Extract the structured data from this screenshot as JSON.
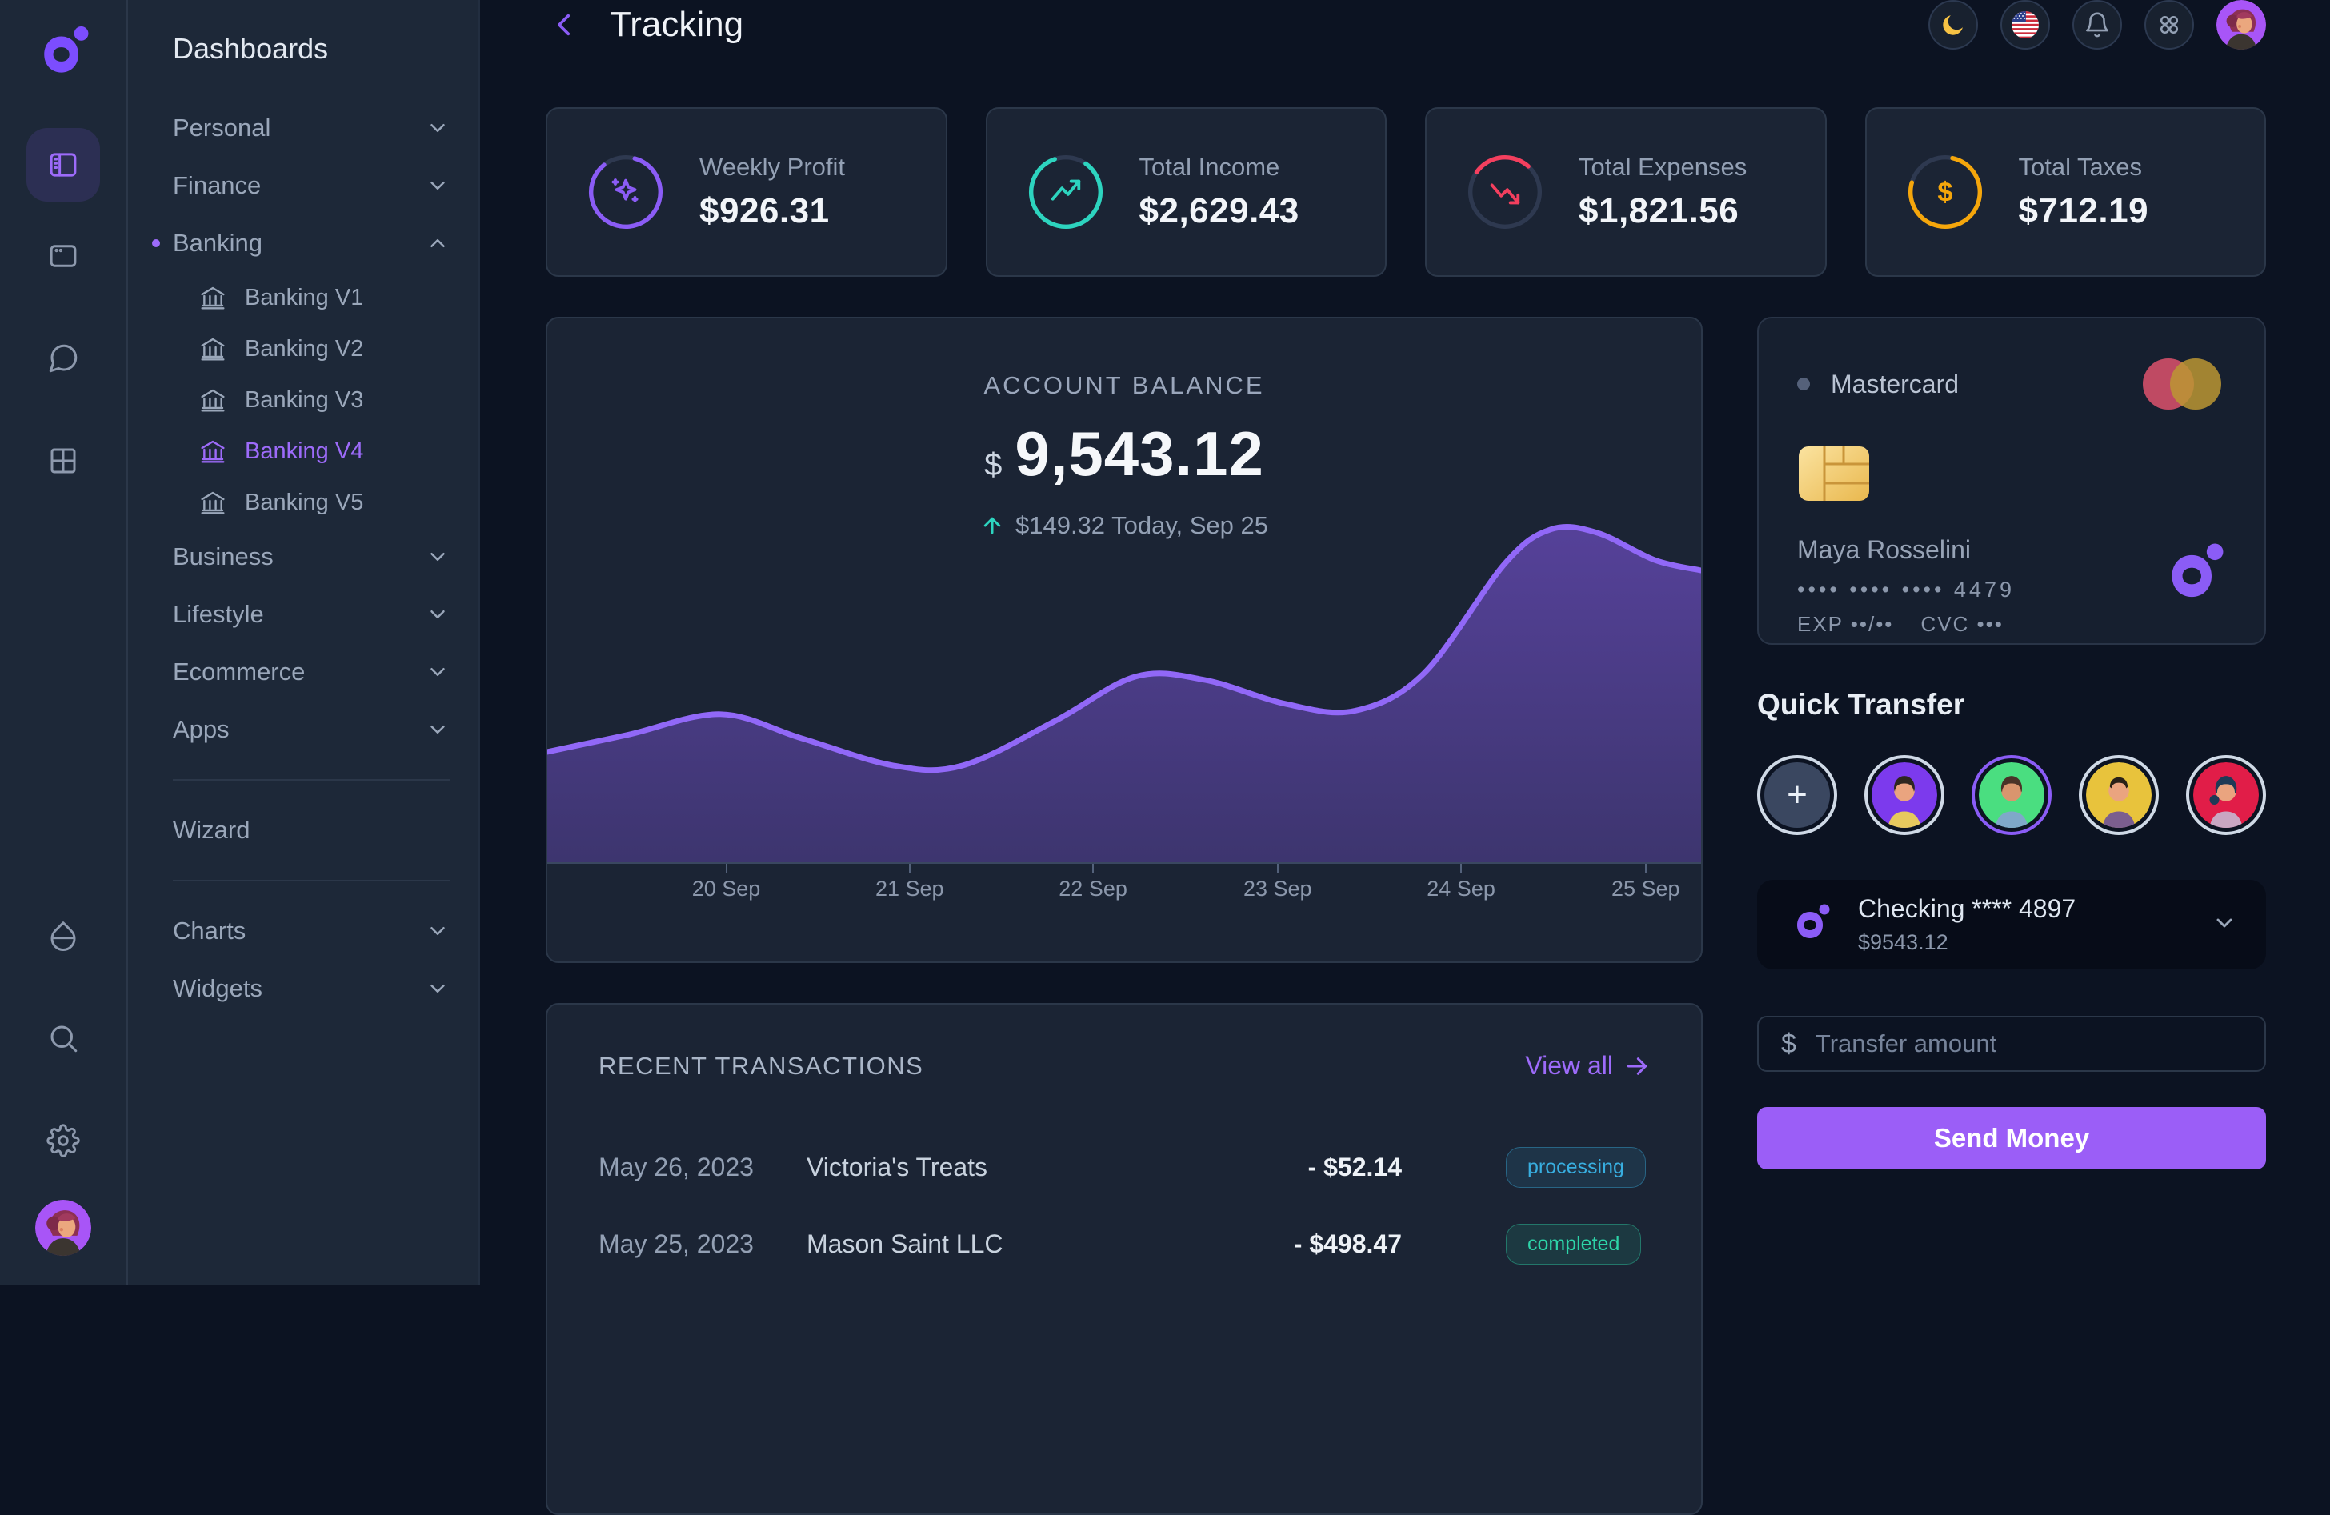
{
  "sidebar": {
    "title": "Dashboards",
    "groups": [
      {
        "label": "Personal",
        "chevron": "down"
      },
      {
        "label": "Finance",
        "chevron": "down"
      },
      {
        "label": "Banking",
        "chevron": "up",
        "active": true
      }
    ],
    "banking_children": [
      {
        "label": "Banking V1"
      },
      {
        "label": "Banking V2"
      },
      {
        "label": "Banking V3"
      },
      {
        "label": "Banking V4",
        "active": true
      },
      {
        "label": "Banking V5"
      }
    ],
    "mid_groups": [
      {
        "label": "Business"
      },
      {
        "label": "Lifestyle"
      },
      {
        "label": "Ecommerce"
      },
      {
        "label": "Apps"
      }
    ],
    "wizard_label": "Wizard",
    "bottom_groups": [
      {
        "label": "Charts"
      },
      {
        "label": "Widgets"
      }
    ]
  },
  "header": {
    "title": "Tracking"
  },
  "stats": [
    {
      "label": "Weekly Profit",
      "value": "$926.31",
      "color": "#8b5cf6",
      "ring_percent": 85,
      "ring_start": -75,
      "icon": "sparkle"
    },
    {
      "label": "Total Income",
      "value": "$2,629.43",
      "color": "#2dd4bf",
      "ring_percent": 85,
      "ring_start": -55,
      "icon": "trending-up"
    },
    {
      "label": "Total Expenses",
      "value": "$1,821.56",
      "color": "#f43f5e",
      "ring_percent": 27,
      "ring_start": -145,
      "icon": "trending-down"
    },
    {
      "label": "Total Taxes",
      "value": "$712.19",
      "color": "#f5a60b",
      "ring_percent": 76,
      "ring_start": -78,
      "icon": "dollar"
    }
  ],
  "balance": {
    "label": "ACCOUNT BALANCE",
    "currency": "$",
    "amount": "9,543.12",
    "delta": "$149.32 Today, Sep 25"
  },
  "chart_data": {
    "type": "area",
    "title": "Account balance trend",
    "x_labels": [
      "20 Sep",
      "21 Sep",
      "22 Sep",
      "23 Sep",
      "24 Sep",
      "25 Sep"
    ],
    "tick_positions": [
      15.5,
      31.4,
      47.3,
      63.3,
      79.2,
      95.2
    ],
    "points": [
      {
        "x": 0,
        "y": 29
      },
      {
        "x": 7,
        "y": 34
      },
      {
        "x": 15,
        "y": 40
      },
      {
        "x": 22,
        "y": 33
      },
      {
        "x": 30,
        "y": 25
      },
      {
        "x": 36,
        "y": 25
      },
      {
        "x": 44,
        "y": 38
      },
      {
        "x": 51,
        "y": 51
      },
      {
        "x": 57,
        "y": 50
      },
      {
        "x": 64,
        "y": 43
      },
      {
        "x": 70,
        "y": 41
      },
      {
        "x": 76,
        "y": 52
      },
      {
        "x": 83,
        "y": 84
      },
      {
        "x": 87,
        "y": 94
      },
      {
        "x": 91,
        "y": 93
      },
      {
        "x": 96,
        "y": 85
      },
      {
        "x": 100,
        "y": 82
      }
    ],
    "ylim": [
      0,
      100
    ],
    "line_color": "#9168f7",
    "fill_top": "rgba(139,92,246,0.52)",
    "fill_bottom": "rgba(139,92,246,0.30)",
    "grid": false,
    "legend": false
  },
  "transactions": {
    "title": "RECENT TRANSACTIONS",
    "view_all": "View all",
    "rows": [
      {
        "date": "May 26, 2023",
        "merchant": "Victoria's Treats",
        "amount": "- $52.14",
        "status": "processing",
        "status_color": "#38aee0"
      },
      {
        "date": "May 25, 2023",
        "merchant": "Mason Saint LLC",
        "amount": "- $498.47",
        "status": "completed",
        "status_color": "#2dd4a8"
      }
    ]
  },
  "card_panel": {
    "network": "Mastercard",
    "holder": "Maya Rosselini",
    "masked_number": "•••• •••• •••• 4479",
    "exp": "EXP ••/••",
    "cvc": "CVC •••"
  },
  "quick_transfer": {
    "title": "Quick Transfer",
    "add_label": "+",
    "contacts": [
      {
        "bg": "#7c3aed",
        "ring": "#cfd9e6",
        "shirt": "#e7c95e"
      },
      {
        "bg": "#4ade80",
        "ring": "#8b5cf6",
        "shirt": "#7fa8c9",
        "selected": true
      },
      {
        "bg": "#e8c33c",
        "ring": "#cfd9e6",
        "shirt": "#7b5e8f"
      },
      {
        "bg": "#e11d48",
        "ring": "#cfd9e6",
        "shirt": "#c9a6c2"
      }
    ]
  },
  "account_select": {
    "name": "Checking **** 4897",
    "balance": "$9543.12"
  },
  "transfer": {
    "placeholder": "Transfer amount",
    "send_label": "Send Money"
  }
}
